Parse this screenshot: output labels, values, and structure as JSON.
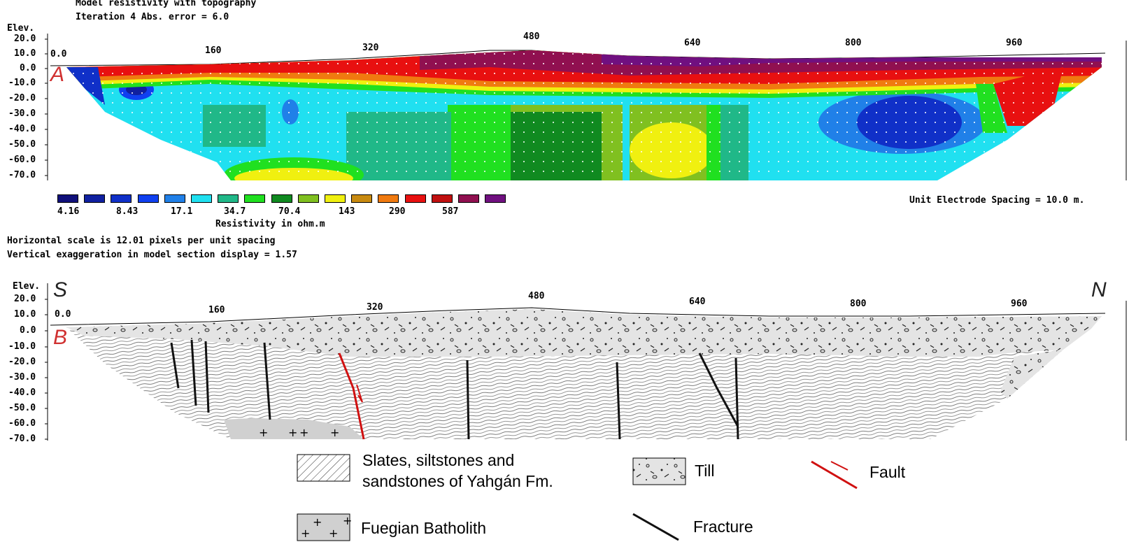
{
  "top": {
    "title_line1": "Model resistivity with topography",
    "title_line2": "Iteration 4 Abs. error = 6.0",
    "elev_label": "Elev.",
    "y_ticks": [
      "20.0",
      "10.0",
      "0.0",
      "-10.0",
      "-20.0",
      "-30.0",
      "-40.0",
      "-50.0",
      "-60.0",
      "-70.0"
    ],
    "x_ticks": [
      "0.0",
      "160",
      "320",
      "480",
      "640",
      "800",
      "960"
    ],
    "label_A": "A",
    "legend_colors": [
      "#10107a",
      "#1020a0",
      "#1030c8",
      "#1040f0",
      "#2080e8",
      "#20e0f0",
      "#20b888",
      "#20e020",
      "#108a20",
      "#80c020",
      "#f0f010",
      "#c88a10",
      "#f07a10",
      "#e81010",
      "#c01010",
      "#901050",
      "#701080"
    ],
    "legend_values": [
      "4.16",
      "8.43",
      "17.1",
      "34.7",
      "70.4",
      "143",
      "290",
      "587"
    ],
    "legend_title": "Resistivity in ohm.m",
    "electrode_spacing": "Unit Electrode Spacing = 10.0 m.",
    "hscale": "Horizontal scale is 12.01 pixels per unit spacing",
    "vexag": "Vertical exaggeration in model section display = 1.57"
  },
  "bottom": {
    "elev_label": "Elev.",
    "y_ticks": [
      "20.0",
      "10.0",
      "0.0",
      "-10.0",
      "-20.0",
      "-30.0",
      "-40.0",
      "-50.0",
      "-60.0",
      "-70.0"
    ],
    "x_ticks": [
      "0.0",
      "160",
      "320",
      "480",
      "640",
      "800",
      "960"
    ],
    "label_S": "S",
    "label_N": "N",
    "label_B": "B"
  },
  "legend": {
    "slates_line1": "Slates, siltstones and",
    "slates_line2": "sandstones of Yahgán Fm.",
    "till": "Till",
    "fault": "Fault",
    "batholith": "Fuegian Batholith",
    "fracture": "Fracture"
  }
}
